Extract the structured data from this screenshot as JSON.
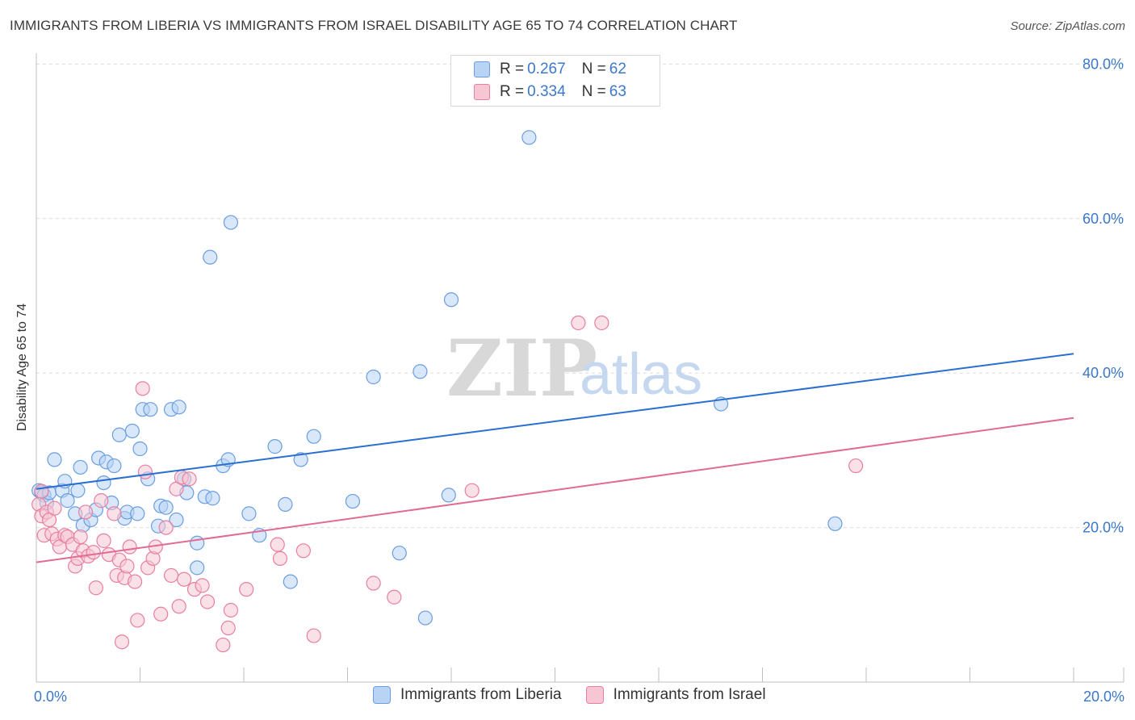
{
  "chart_data": {
    "type": "scatter",
    "title": "IMMIGRANTS FROM LIBERIA VS IMMIGRANTS FROM ISRAEL DISABILITY AGE 65 TO 74 CORRELATION CHART",
    "source": "Source: ZipAtlas.com",
    "xlabel": "",
    "ylabel": "Disability Age 65 to 74",
    "xlim": [
      0,
      20
    ],
    "ylim": [
      0,
      80
    ],
    "x_tick_labels": [
      "0.0%",
      "20.0%"
    ],
    "y_tick_values": [
      20,
      40,
      60,
      80
    ],
    "y_tick_labels": [
      "20.0%",
      "40.0%",
      "60.0%",
      "80.0%"
    ],
    "watermark": "ZIPatlas",
    "legend": [
      {
        "name": "Immigrants from Liberia",
        "r_label": "R =",
        "r": "0.267",
        "n_label": "N =",
        "n": "62",
        "color": "#6a9ee0",
        "fill": "#b8d3f4"
      },
      {
        "name": "Immigrants from Israel",
        "r_label": "R =",
        "r": "0.334",
        "n_label": "N =",
        "n": "63",
        "color": "#e87fa0",
        "fill": "#f6c6d4"
      }
    ],
    "series": [
      {
        "name": "Immigrants from Liberia",
        "color": "#6a9ee0",
        "line_color": "#2a6fd0",
        "trend": {
          "x0": 0,
          "y0": 25.0,
          "x1": 20,
          "y1": 42.5
        },
        "points": [
          [
            0.05,
            24.8
          ],
          [
            0.1,
            24.5
          ],
          [
            0.15,
            24.2
          ],
          [
            0.2,
            23.2
          ],
          [
            0.25,
            24.5
          ],
          [
            0.35,
            28.8
          ],
          [
            0.5,
            24.8
          ],
          [
            0.55,
            26.0
          ],
          [
            0.6,
            23.5
          ],
          [
            0.75,
            21.8
          ],
          [
            0.8,
            24.8
          ],
          [
            0.85,
            27.8
          ],
          [
            0.9,
            20.3
          ],
          [
            1.05,
            21.0
          ],
          [
            1.15,
            22.3
          ],
          [
            1.2,
            29.0
          ],
          [
            1.3,
            25.8
          ],
          [
            1.35,
            28.5
          ],
          [
            1.45,
            23.2
          ],
          [
            1.5,
            28.0
          ],
          [
            1.6,
            32.0
          ],
          [
            1.7,
            21.2
          ],
          [
            1.75,
            22.0
          ],
          [
            1.85,
            32.5
          ],
          [
            1.95,
            21.8
          ],
          [
            2.0,
            30.2
          ],
          [
            2.05,
            35.3
          ],
          [
            2.15,
            26.3
          ],
          [
            2.2,
            35.3
          ],
          [
            2.35,
            20.2
          ],
          [
            2.4,
            22.8
          ],
          [
            2.5,
            22.6
          ],
          [
            2.6,
            35.3
          ],
          [
            2.7,
            21.0
          ],
          [
            2.75,
            35.6
          ],
          [
            2.85,
            26.3
          ],
          [
            2.9,
            24.5
          ],
          [
            3.1,
            18.0
          ],
          [
            3.1,
            14.8
          ],
          [
            3.25,
            24.0
          ],
          [
            3.35,
            55.0
          ],
          [
            3.4,
            23.8
          ],
          [
            3.6,
            28.0
          ],
          [
            3.7,
            28.8
          ],
          [
            3.75,
            59.5
          ],
          [
            4.1,
            21.8
          ],
          [
            4.3,
            19.0
          ],
          [
            4.6,
            30.5
          ],
          [
            4.8,
            23.0
          ],
          [
            4.9,
            13.0
          ],
          [
            5.1,
            28.8
          ],
          [
            5.35,
            31.8
          ],
          [
            6.1,
            23.4
          ],
          [
            6.5,
            39.5
          ],
          [
            7.0,
            16.7
          ],
          [
            7.4,
            40.2
          ],
          [
            7.5,
            8.3
          ],
          [
            7.95,
            24.2
          ],
          [
            8.0,
            49.5
          ],
          [
            9.5,
            70.5
          ],
          [
            13.2,
            36.0
          ],
          [
            15.4,
            20.5
          ]
        ]
      },
      {
        "name": "Immigrants from Israel",
        "color": "#e87fa0",
        "line_color": "#e06b94",
        "trend": {
          "x0": 0,
          "y0": 15.5,
          "x1": 20,
          "y1": 34.2
        },
        "points": [
          [
            0.05,
            23.0
          ],
          [
            0.1,
            21.5
          ],
          [
            0.15,
            19.0
          ],
          [
            0.2,
            22.0
          ],
          [
            0.25,
            21.0
          ],
          [
            0.3,
            19.2
          ],
          [
            0.35,
            22.5
          ],
          [
            0.4,
            18.5
          ],
          [
            0.45,
            17.5
          ],
          [
            0.55,
            19.0
          ],
          [
            0.6,
            18.8
          ],
          [
            0.7,
            17.8
          ],
          [
            0.75,
            15.0
          ],
          [
            0.8,
            16.0
          ],
          [
            0.85,
            18.8
          ],
          [
            0.9,
            17.0
          ],
          [
            0.95,
            22.0
          ],
          [
            1.0,
            16.3
          ],
          [
            1.1,
            16.8
          ],
          [
            1.15,
            12.2
          ],
          [
            1.25,
            23.5
          ],
          [
            1.3,
            18.3
          ],
          [
            1.4,
            16.5
          ],
          [
            1.5,
            21.8
          ],
          [
            1.55,
            13.8
          ],
          [
            1.6,
            15.8
          ],
          [
            1.65,
            5.2
          ],
          [
            1.7,
            13.5
          ],
          [
            1.75,
            15.0
          ],
          [
            1.8,
            17.5
          ],
          [
            1.9,
            13.0
          ],
          [
            1.95,
            8.0
          ],
          [
            2.05,
            38.0
          ],
          [
            2.1,
            27.2
          ],
          [
            2.15,
            14.8
          ],
          [
            2.25,
            16.0
          ],
          [
            2.3,
            17.5
          ],
          [
            2.4,
            8.8
          ],
          [
            2.5,
            20.0
          ],
          [
            2.6,
            13.8
          ],
          [
            2.7,
            25.0
          ],
          [
            2.75,
            9.8
          ],
          [
            2.8,
            26.5
          ],
          [
            2.85,
            13.3
          ],
          [
            2.95,
            26.3
          ],
          [
            3.05,
            12.0
          ],
          [
            3.2,
            12.5
          ],
          [
            3.3,
            10.4
          ],
          [
            3.6,
            4.8
          ],
          [
            3.7,
            7.0
          ],
          [
            3.75,
            9.3
          ],
          [
            4.05,
            12.0
          ],
          [
            4.65,
            17.8
          ],
          [
            4.7,
            16.0
          ],
          [
            5.15,
            17.0
          ],
          [
            5.35,
            6.0
          ],
          [
            6.5,
            12.8
          ],
          [
            6.9,
            11.0
          ],
          [
            8.4,
            24.8
          ],
          [
            10.45,
            46.5
          ],
          [
            10.9,
            46.5
          ],
          [
            15.8,
            28.0
          ],
          [
            0.1,
            24.7
          ]
        ]
      }
    ]
  }
}
